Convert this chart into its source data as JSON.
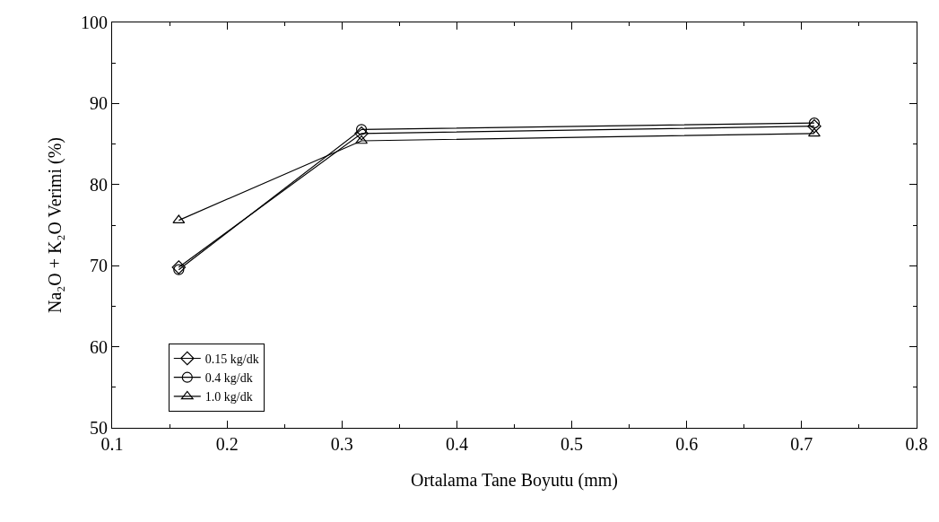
{
  "chart_data": {
    "type": "line",
    "xlabel": "Ortalama Tane Boyutu (mm)",
    "ylabel": "Na₂O + K₂O Verimi (%)",
    "x": [
      0.158,
      0.317,
      0.711
    ],
    "series": [
      {
        "name": "0.15 kg/dk",
        "color": "#000000",
        "marker": "diamond",
        "values": [
          69.8,
          86.3,
          87.2
        ]
      },
      {
        "name": "0.4 kg/dk",
        "color": "#000000",
        "marker": "circle",
        "values": [
          69.5,
          86.8,
          87.6
        ]
      },
      {
        "name": "1.0 kg/dk",
        "color": "#000000",
        "marker": "triangle",
        "values": [
          75.6,
          85.4,
          86.3
        ]
      }
    ],
    "xlim": [
      0.1,
      0.8
    ],
    "xticks": [
      0.1,
      0.2,
      0.3,
      0.4,
      0.5,
      0.6,
      0.7,
      0.8
    ],
    "ylim": [
      50,
      100
    ],
    "yticks": [
      50,
      60,
      70,
      80,
      90,
      100
    ],
    "legend": "bottom left",
    "line_style": "solid"
  }
}
